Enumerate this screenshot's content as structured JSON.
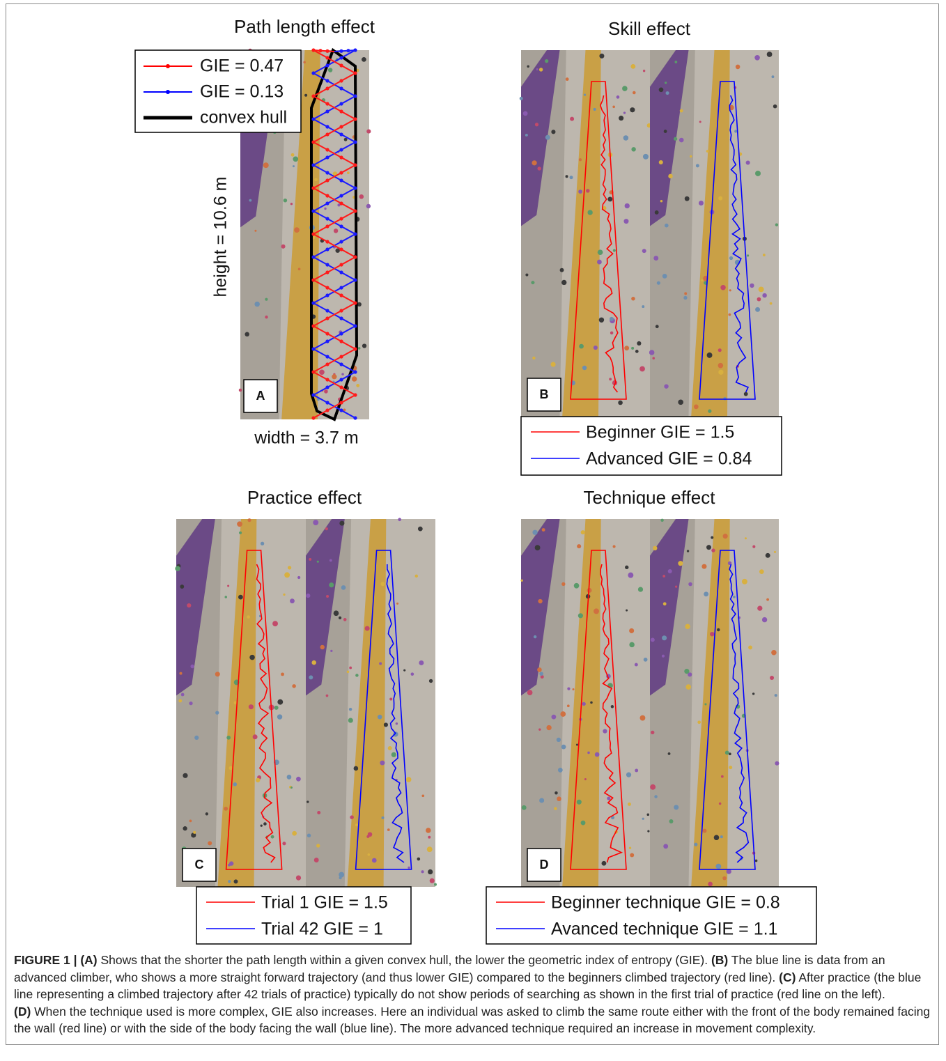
{
  "panels": [
    {
      "title": "Path length effect",
      "letter": "A",
      "legend": [
        "GIE = 0.47",
        "GIE = 0.13",
        "convex hull"
      ],
      "height_label": "height = 10.6 m",
      "width_label": "width = 3.7 m"
    },
    {
      "title": "Skill effect",
      "letter": "B",
      "legend": [
        "Beginner GIE = 1.5",
        "Advanced GIE = 0.84"
      ]
    },
    {
      "title": "Practice effect",
      "letter": "C",
      "legend": [
        "Trial 1 GIE = 1.5",
        "Trial 42 GIE = 1"
      ]
    },
    {
      "title": "Technique effect",
      "letter": "D",
      "legend": [
        "Beginner technique GIE = 0.8",
        "Avanced technique GIE = 1.1"
      ]
    }
  ],
  "caption": [
    {
      "label": "FIGURE 1 | (A)",
      "text": " Shows that the shorter the path length within a given convex hull, the lower the geometric index of entropy (GIE). "
    },
    {
      "label": "(B)",
      "text": " The blue line is data from an advanced climber, who shows a more straight forward trajectory (and thus lower GIE) compared to the beginners climbed trajectory (red line). "
    },
    {
      "label": "(C)",
      "text": " After practice (the blue line representing a climbed trajectory after 42 trials of practice) typically do not show periods of searching as shown in the first trial of practice (red line on the left). "
    },
    {
      "label": "(D)",
      "text": " When the technique used is more complex, GIE also increases. Here an individual was asked to climb the same route either with the front of the body remained facing the wall (red line) or with the side of the body facing the wall (blue line). The more advanced technique required an increase in movement complexity."
    }
  ]
}
